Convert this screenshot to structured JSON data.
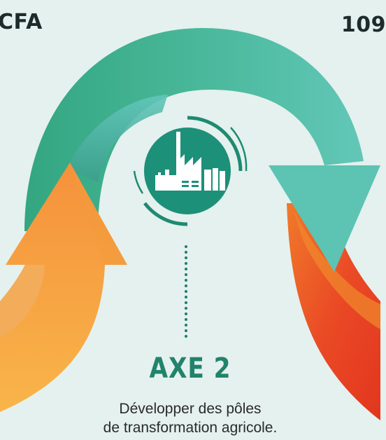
{
  "header": {
    "left_value": "CFA",
    "right_value": "109"
  },
  "axis": {
    "title": "AXE 2",
    "description_line1": "Développer des pôles",
    "description_line2": "de transformation agricole."
  },
  "colors": {
    "background": "#e4f1ee",
    "green_arrow": "#36a88a",
    "teal_arrow": "#5cc4b5",
    "orange_arrow": "#f6a23f",
    "red_arrow": "#e93c24",
    "title_green": "#21836b"
  },
  "icons": {
    "center": "factory-icon"
  }
}
